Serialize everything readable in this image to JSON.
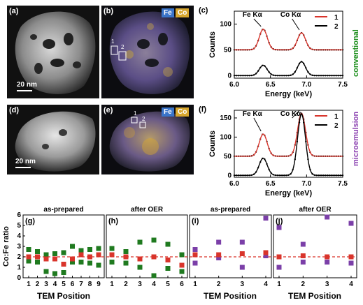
{
  "panels": {
    "a": {
      "label": "(a)",
      "scalebar": "20 nm"
    },
    "b": {
      "label": "(b)",
      "legend_fe": "Fe",
      "legend_co": "Co",
      "roi1": "1",
      "roi2": "2"
    },
    "c": {
      "label": "(c)",
      "peak_fe": "Fe Kα",
      "peak_co": "Co Kα",
      "side_label": "conventional"
    },
    "d": {
      "label": "(d)",
      "scalebar": "20 nm"
    },
    "e": {
      "label": "(e)",
      "legend_fe": "Fe",
      "legend_co": "Co",
      "roi1": "1",
      "roi2": "2"
    },
    "f": {
      "label": "(f)",
      "peak_fe": "Fe Kα",
      "peak_co": "Co Kα",
      "side_label": "microemulsion"
    },
    "g": {
      "label": "(g)",
      "header": "as-prepared"
    },
    "h": {
      "label": "(h)",
      "header": "after OER"
    },
    "i": {
      "label": "(i)",
      "header": "as-prepared"
    },
    "j": {
      "label": "(j)",
      "header": "after OER"
    }
  },
  "colors": {
    "fe": "#3a74c9",
    "co": "#d7a72f",
    "fit1": "#d9342b",
    "data": "#000000",
    "green": "#1f7a1f",
    "red": "#d9342b",
    "purple": "#7b3fa8",
    "side_green": "#1d8f1d",
    "side_purple": "#8a3fb0"
  },
  "chart_data": [
    {
      "id": "c",
      "type": "line",
      "xlabel": "Energy (keV)",
      "ylabel": "Counts",
      "xlim": [
        6.0,
        7.5
      ],
      "ylim": [
        -5,
        125
      ],
      "xticks": [
        "6.0",
        "6.5",
        "7.0",
        "7.5"
      ],
      "yticks": [
        "0",
        "50",
        "100"
      ],
      "series": [
        {
          "name": "1",
          "baseline": 50,
          "fe_peak": 40,
          "co_peak": 33
        },
        {
          "name": "2",
          "baseline": 0,
          "fe_peak": 20,
          "co_peak": 27
        }
      ]
    },
    {
      "id": "f",
      "type": "line",
      "xlabel": "Energy (keV)",
      "ylabel": "Counts",
      "xlim": [
        6.0,
        7.5
      ],
      "ylim": [
        -5,
        170
      ],
      "xticks": [
        "6.0",
        "6.5",
        "7.0",
        "7.5"
      ],
      "yticks": [
        "0",
        "50",
        "100",
        "150"
      ],
      "series": [
        {
          "name": "1",
          "baseline": 50,
          "fe_peak": 58,
          "co_peak": 112
        },
        {
          "name": "2",
          "baseline": 0,
          "fe_peak": 45,
          "co_peak": 160
        }
      ]
    },
    {
      "id": "ghij",
      "type": "scatter",
      "xlabel": "TEM Position",
      "ylabel": "Co:Fe ratio",
      "ylim": [
        0,
        6
      ],
      "yticks": [
        "0",
        "1",
        "2",
        "3",
        "4",
        "5",
        "6"
      ],
      "reference_line": 2,
      "panels": [
        {
          "id": "g",
          "x": [
            1,
            2,
            3,
            4,
            5,
            6,
            7,
            8,
            9
          ],
          "co_fe_red": [
            2.0,
            2.0,
            1.8,
            1.8,
            1.3,
            1.8,
            2.2,
            2.0,
            2.2
          ],
          "green_high": [
            2.7,
            2.5,
            2.2,
            2.3,
            2.4,
            3.0,
            2.6,
            2.7,
            2.8
          ],
          "green_low": [
            1.6,
            1.5,
            0.6,
            0.4,
            0.5,
            1.5,
            1.5,
            1.4,
            1.2
          ],
          "xticks": [
            "1",
            "2",
            "3",
            "4",
            "5",
            "6",
            "7",
            "8",
            "9"
          ]
        },
        {
          "id": "h",
          "x": [
            1,
            2,
            3,
            4,
            5,
            6
          ],
          "co_fe_red": [
            2.2,
            2.0,
            1.8,
            2.0,
            1.7,
            1.2
          ],
          "green_high": [
            2.8,
            2.5,
            3.4,
            3.6,
            3.2,
            2.2
          ],
          "green_low": [
            1.5,
            1.4,
            1.0,
            0.2,
            0.9,
            0.6
          ],
          "xticks": [
            "1",
            "2",
            "3",
            "4",
            "5",
            "6"
          ]
        },
        {
          "id": "i",
          "x": [
            1,
            2,
            3,
            4
          ],
          "co_fe_red": [
            2.2,
            2.2,
            2.3,
            2.4
          ],
          "purple_high": [
            2.7,
            3.4,
            3.4,
            5.7
          ],
          "purple_low": [
            1.4,
            1.9,
            1.0,
            2.1
          ],
          "xticks": [
            "1",
            "2",
            "3",
            "4"
          ]
        },
        {
          "id": "j",
          "x": [
            1,
            2,
            3,
            4
          ],
          "co_fe_red": [
            2.0,
            2.1,
            2.0,
            2.0
          ],
          "purple_high": [
            4.8,
            3.2,
            5.8,
            5.2
          ],
          "purple_low": [
            1.0,
            1.5,
            1.5,
            1.4
          ],
          "xticks": [
            "1",
            "2",
            "3",
            "4"
          ]
        }
      ]
    }
  ]
}
